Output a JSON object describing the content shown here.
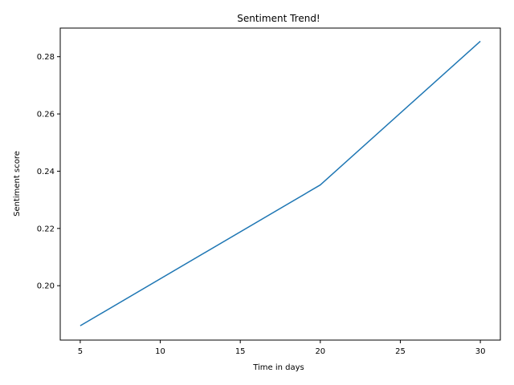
{
  "chart_data": {
    "type": "line",
    "title": "Sentiment Trend!",
    "xlabel": "Time in days",
    "ylabel": "Sentiment score",
    "x": [
      5,
      20,
      30
    ],
    "series": [
      {
        "values": [
          0.186,
          0.2352,
          0.2854
        ],
        "color": "#1f77b4"
      }
    ],
    "xlim": [
      3.75,
      31.25
    ],
    "ylim": [
      0.181,
      0.29
    ],
    "xticks": [
      5,
      10,
      15,
      20,
      25,
      30
    ],
    "xtick_labels": [
      "5",
      "10",
      "15",
      "20",
      "25",
      "30"
    ],
    "yticks": [
      0.2,
      0.22,
      0.24,
      0.26,
      0.28
    ],
    "ytick_labels": [
      "0.20",
      "0.22",
      "0.24",
      "0.26",
      "0.28"
    ],
    "grid": false
  }
}
